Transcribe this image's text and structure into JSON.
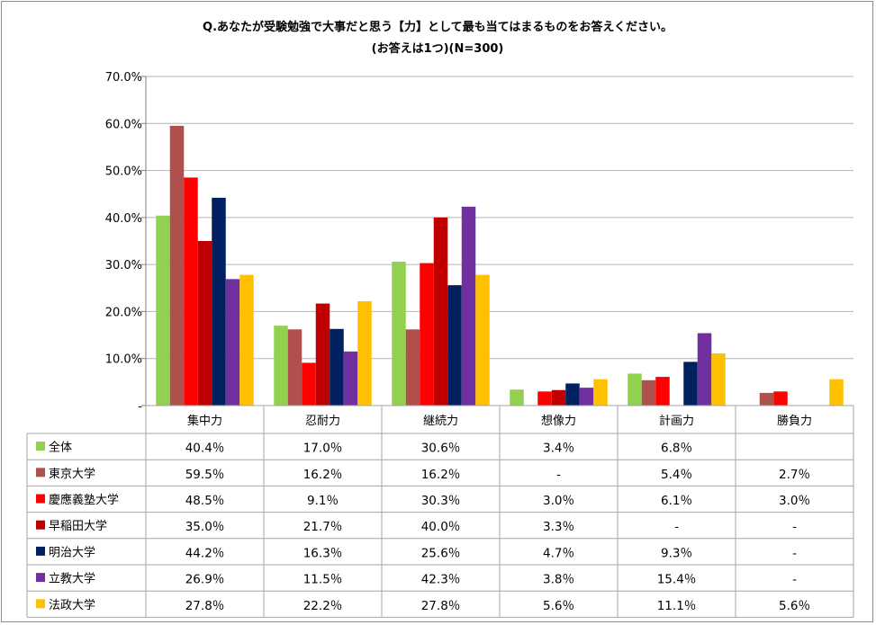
{
  "chart_data": {
    "type": "bar",
    "title": "Q.あなたが受験勉強で大事だと思う【力】として最も当てはまるものをお答えください。",
    "subtitle": "(お答えは1つ)(N=300)",
    "ylim": [
      0,
      70
    ],
    "yticks": [
      "-",
      "10.0%",
      "20.0%",
      "30.0%",
      "40.0%",
      "50.0%",
      "60.0%",
      "70.0%"
    ],
    "grid": true,
    "legend": "table-left",
    "categories": [
      "集中力",
      "忍耐力",
      "継続力",
      "想像力",
      "計画力",
      "勝負力"
    ],
    "series": [
      {
        "name": "全体",
        "color": "#92d050",
        "values": [
          40.4,
          17.0,
          30.6,
          3.4,
          6.8,
          null
        ],
        "labels": [
          "40.4％",
          "17.0％",
          "30.6％",
          "3.4％",
          "6.8％",
          ""
        ]
      },
      {
        "name": "東京大学",
        "color": "#b0504d",
        "values": [
          59.5,
          16.2,
          16.2,
          null,
          5.4,
          2.7
        ],
        "labels": [
          "59.5％",
          "16.2％",
          "16.2％",
          "-",
          "5.4％",
          "2.7％"
        ]
      },
      {
        "name": "慶應義塾大学",
        "color": "#ff0000",
        "values": [
          48.5,
          9.1,
          30.3,
          3.0,
          6.1,
          3.0
        ],
        "labels": [
          "48.5％",
          "9.1％",
          "30.3％",
          "3.0％",
          "6.1％",
          "3.0％"
        ]
      },
      {
        "name": "早稲田大学",
        "color": "#c00000",
        "values": [
          35.0,
          21.7,
          40.0,
          3.3,
          null,
          null
        ],
        "labels": [
          "35.0％",
          "21.7％",
          "40.0％",
          "3.3％",
          "-",
          "-"
        ]
      },
      {
        "name": "明治大学",
        "color": "#002060",
        "values": [
          44.2,
          16.3,
          25.6,
          4.7,
          9.3,
          null
        ],
        "labels": [
          "44.2％",
          "16.3％",
          "25.6％",
          "4.7％",
          "9.3％",
          "-"
        ]
      },
      {
        "name": "立教大学",
        "color": "#7030a0",
        "values": [
          26.9,
          11.5,
          42.3,
          3.8,
          15.4,
          null
        ],
        "labels": [
          "26.9％",
          "11.5％",
          "42.3％",
          "3.8％",
          "15.4％",
          "-"
        ]
      },
      {
        "name": "法政大学",
        "color": "#ffc000",
        "values": [
          27.8,
          22.2,
          27.8,
          5.6,
          11.1,
          5.6
        ],
        "labels": [
          "27.8％",
          "22.2％",
          "27.8％",
          "5.6％",
          "11.1％",
          "5.6％"
        ]
      }
    ]
  }
}
